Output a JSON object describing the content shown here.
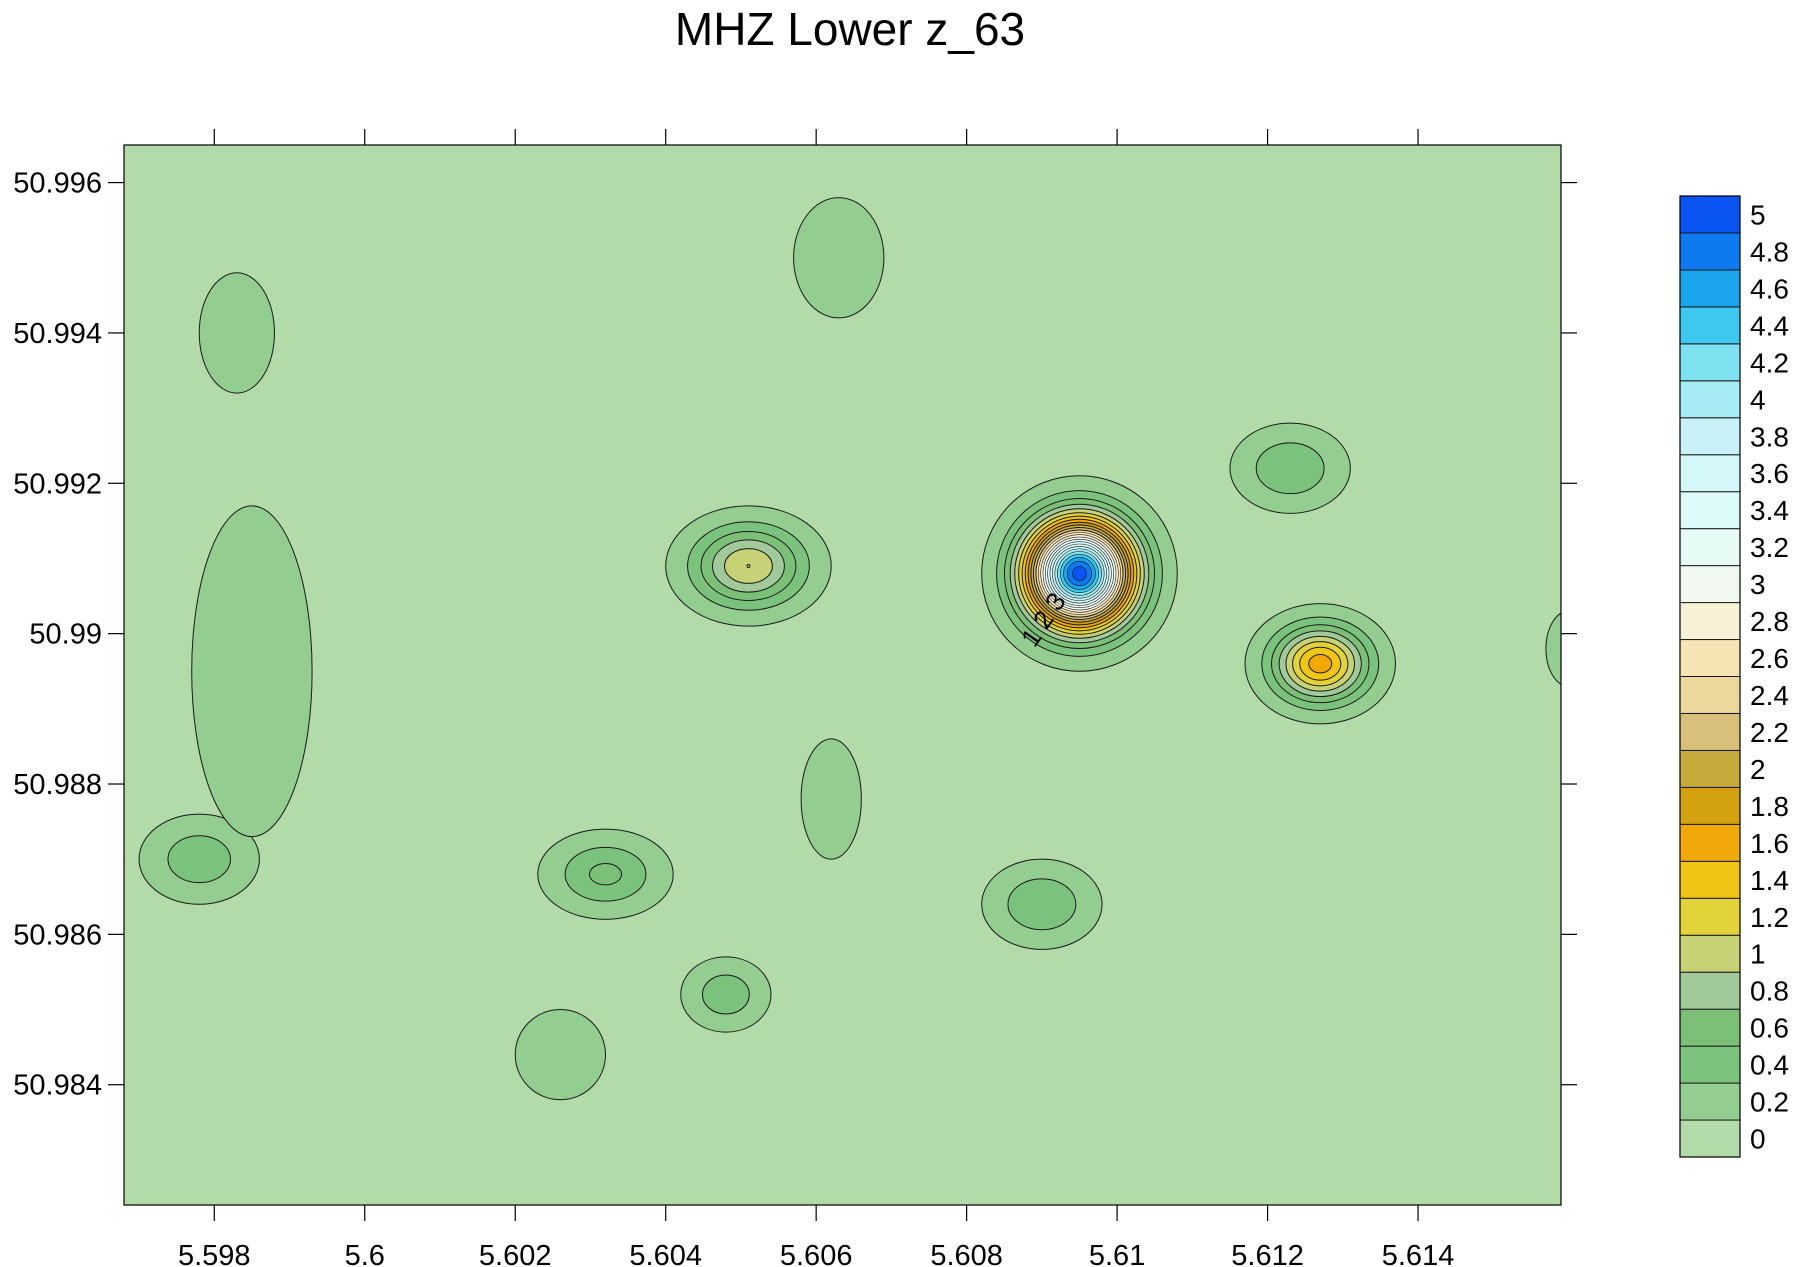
{
  "chart_data": {
    "type": "contour",
    "title": "MHZ Lower z_63",
    "xlabel": "",
    "ylabel": "",
    "x_ticks": [
      5.598,
      5.6,
      5.602,
      5.604,
      5.606,
      5.608,
      5.61,
      5.612,
      5.614
    ],
    "x_tick_labels": [
      "5.598",
      "5.6",
      "5.602",
      "5.604",
      "5.606",
      "5.608",
      "5.61",
      "5.612",
      "5.614"
    ],
    "y_ticks": [
      50.984,
      50.986,
      50.988,
      50.99,
      50.992,
      50.994,
      50.996
    ],
    "y_tick_labels": [
      "50.984",
      "50.986",
      "50.988",
      "50.99",
      "50.992",
      "50.994",
      "50.996"
    ],
    "xlim": [
      5.5968,
      5.6159
    ],
    "ylim": [
      50.9824,
      50.9965
    ],
    "color_levels": [
      0,
      0.2,
      0.4,
      0.6,
      0.8,
      1,
      1.2,
      1.4,
      1.6,
      1.8,
      2,
      2.2,
      2.4,
      2.6,
      2.8,
      3,
      3.2,
      3.4,
      3.6,
      3.8,
      4,
      4.2,
      4.4,
      4.6,
      4.8,
      5
    ],
    "level_labels": [
      "0",
      "0.2",
      "0.4",
      "0.6",
      "0.8",
      "1",
      "1.2",
      "1.4",
      "1.6",
      "1.8",
      "2",
      "2.2",
      "2.4",
      "2.6",
      "2.8",
      "3",
      "3.2",
      "3.4",
      "3.6",
      "3.8",
      "4",
      "4.2",
      "4.4",
      "4.6",
      "4.8",
      "5"
    ],
    "level_colors": [
      "#b3daa9",
      "#93cd90",
      "#7bc27c",
      "#7cbf77",
      "#a2c99a",
      "#c7d176",
      "#e3d33a",
      "#f1c516",
      "#f1a90a",
      "#d3a010",
      "#c6aa3e",
      "#d8c07a",
      "#ecd79c",
      "#f6e4b4",
      "#f8f1d6",
      "#f0f8f0",
      "#e6fbf6",
      "#dcfafa",
      "#d4f8fa",
      "#c8f2f7",
      "#a7ecf4",
      "#7fe2f0",
      "#3ec8f0",
      "#1aa4ec",
      "#0f7af0",
      "#0a54f4"
    ],
    "contour_labels": [
      "1",
      "2",
      "3"
    ],
    "anomalies": [
      {
        "x": 5.6051,
        "y": 50.9909,
        "peak": 1.1,
        "rx": 0.0011,
        "ry": 0.0008
      },
      {
        "x": 5.6095,
        "y": 50.9908,
        "peak": 5.0,
        "rx": 0.0013,
        "ry": 0.0013
      },
      {
        "x": 5.6127,
        "y": 50.9896,
        "peak": 1.6,
        "rx": 0.001,
        "ry": 0.0008
      },
      {
        "x": 5.6123,
        "y": 50.9922,
        "peak": 0.5,
        "rx": 0.0008,
        "ry": 0.0006
      },
      {
        "x": 5.6032,
        "y": 50.9868,
        "peak": 0.55,
        "rx": 0.0009,
        "ry": 0.0006
      },
      {
        "x": 5.6048,
        "y": 50.9852,
        "peak": 0.45,
        "rx": 0.0006,
        "ry": 0.0005
      },
      {
        "x": 5.609,
        "y": 50.9864,
        "peak": 0.5,
        "rx": 0.0008,
        "ry": 0.0006
      },
      {
        "x": 5.5978,
        "y": 50.987,
        "peak": 0.45,
        "rx": 0.0008,
        "ry": 0.0006
      },
      {
        "x": 5.6063,
        "y": 50.995,
        "peak": 0.3,
        "rx": 0.0006,
        "ry": 0.0008
      },
      {
        "x": 5.5983,
        "y": 50.994,
        "peak": 0.3,
        "rx": 0.0005,
        "ry": 0.0008
      },
      {
        "x": 5.6062,
        "y": 50.9878,
        "peak": 0.3,
        "rx": 0.0004,
        "ry": 0.0008
      },
      {
        "x": 5.6026,
        "y": 50.9844,
        "peak": 0.3,
        "rx": 0.0006,
        "ry": 0.0006
      },
      {
        "x": 5.616,
        "y": 50.9898,
        "peak": 0.3,
        "rx": 0.0003,
        "ry": 0.0005
      },
      {
        "x": 5.5985,
        "y": 50.9895,
        "peak": 0.28,
        "rx": 0.0008,
        "ry": 0.0022
      }
    ]
  }
}
